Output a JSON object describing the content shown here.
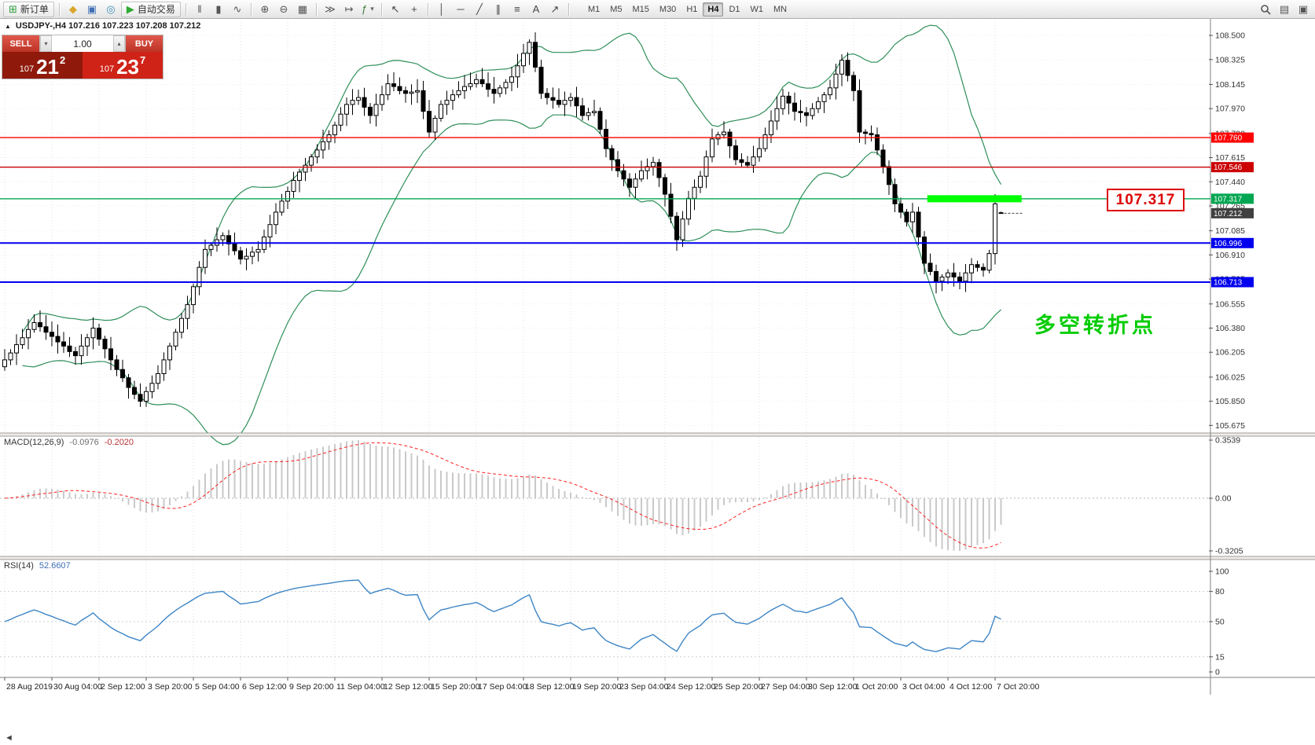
{
  "toolbar": {
    "buttons_left": [
      {
        "name": "new-order-button",
        "glyph": "⊞",
        "glyph_color": "#2e9e3a",
        "label": "新订单",
        "boxed": true
      },
      {
        "sep": true
      },
      {
        "name": "alerts-icon-button",
        "glyph": "◆",
        "glyph_color": "#d9a62b"
      },
      {
        "name": "market-watch-icon-button",
        "glyph": "▣",
        "glyph_color": "#3f6fb5"
      },
      {
        "name": "data-window-icon-button",
        "glyph": "◎",
        "glyph_color": "#3f8fb5"
      },
      {
        "name": "autotrading-button",
        "glyph": "▶",
        "glyph_color": "#2faa2f",
        "label": "自动交易",
        "boxed": true
      },
      {
        "sep": true
      },
      {
        "name": "bar-chart-icon-button",
        "glyph": "‖",
        "glyph_color": "#555555"
      },
      {
        "name": "candlestick-chart-icon-button",
        "glyph": "▮",
        "glyph_color": "#555555"
      },
      {
        "name": "line-chart-icon-button",
        "glyph": "∿",
        "glyph_color": "#555555"
      },
      {
        "sep": true
      },
      {
        "name": "zoom-in-icon-button",
        "glyph": "⊕",
        "glyph_color": "#555555"
      },
      {
        "name": "zoom-out-icon-button",
        "glyph": "⊖",
        "glyph_color": "#555555"
      },
      {
        "name": "tile-windows-icon-button",
        "glyph": "▦",
        "glyph_color": "#555555"
      },
      {
        "sep": true
      },
      {
        "name": "auto-scroll-icon-button",
        "glyph": "≫",
        "glyph_color": "#555555"
      },
      {
        "name": "chart-shift-icon-button",
        "glyph": "↦",
        "glyph_color": "#555555"
      },
      {
        "name": "indicators-icon-button",
        "glyph": "ƒ",
        "glyph_color": "#3a7d3a",
        "caret": true
      },
      {
        "sep": true
      },
      {
        "name": "cursor-icon-button",
        "glyph": "↖",
        "glyph_color": "#444444"
      },
      {
        "name": "crosshair-icon-button",
        "glyph": "+",
        "glyph_color": "#444444"
      },
      {
        "sep": true
      },
      {
        "name": "vertical-line-icon-button",
        "glyph": "│",
        "glyph_color": "#444444"
      },
      {
        "name": "horizontal-line-icon-button",
        "glyph": "─",
        "glyph_color": "#444444"
      },
      {
        "name": "trendline-icon-button",
        "glyph": "╱",
        "glyph_color": "#444444"
      },
      {
        "name": "channel-icon-button",
        "glyph": "∥",
        "glyph_color": "#444444"
      },
      {
        "name": "fibonacci-icon-button",
        "glyph": "≡",
        "glyph_color": "#444444"
      },
      {
        "name": "text-icon-button",
        "glyph": "A",
        "glyph_color": "#444444"
      },
      {
        "name": "arrow-icon-button",
        "glyph": "↗",
        "glyph_color": "#444444"
      },
      {
        "sep": true
      }
    ],
    "timeframes": [
      "M1",
      "M5",
      "M15",
      "M30",
      "H1",
      "H4",
      "D1",
      "W1",
      "MN"
    ],
    "active_timeframe": "H4",
    "buttons_right": [
      {
        "name": "search-icon-button",
        "svg": "magnifier"
      },
      {
        "name": "new-window-icon-button",
        "glyph": "▤",
        "glyph_color": "#555555"
      },
      {
        "name": "layout-icon-button",
        "glyph": "▣",
        "glyph_color": "#555555"
      }
    ]
  },
  "symbol_bar": {
    "collapse_icon": "▲",
    "text": "USDJPY-,H4  107.216 107.223 107.208 107.212"
  },
  "trade_panel": {
    "sell_label": "SELL",
    "buy_label": "BUY",
    "volume": "1.00",
    "sell_price": {
      "prefix": "107",
      "big": "21",
      "sup": "2"
    },
    "buy_price": {
      "prefix": "107",
      "big": "23",
      "sup": "7"
    }
  },
  "annotations": {
    "price_callout": "107.317",
    "turning_point": "多空转折点"
  },
  "chart_data": [
    {
      "type": "candlestick",
      "symbol": "USDJPY-",
      "timeframe": "H4",
      "bars_per_label": 8,
      "x_labels": [
        "28 Aug 2019",
        "30 Aug 04:00",
        "2 Sep 12:00",
        "3 Sep 20:00",
        "5 Sep 04:00",
        "6 Sep 12:00",
        "9 Sep 20:00",
        "11 Sep 04:00",
        "12 Sep 12:00",
        "15 Sep 20:00",
        "17 Sep 04:00",
        "18 Sep 12:00",
        "19 Sep 20:00",
        "23 Sep 04:00",
        "24 Sep 12:00",
        "25 Sep 20:00",
        "27 Sep 04:00",
        "30 Sep 12:00",
        "1 Oct 20:00",
        "3 Oct 04:00",
        "4 Oct 12:00",
        "7 Oct 20:00"
      ],
      "y_axis_ticks": [
        "108.500",
        "108.325",
        "108.145",
        "107.970",
        "107.790",
        "107.615",
        "107.440",
        "107.265",
        "107.085",
        "106.910",
        "106.735",
        "106.555",
        "106.380",
        "106.205",
        "106.025",
        "105.850",
        "105.675"
      ],
      "y_range": [
        105.62,
        108.62
      ],
      "closes": [
        106.15,
        106.2,
        106.26,
        106.31,
        106.37,
        106.42,
        106.39,
        106.35,
        106.32,
        106.28,
        106.25,
        106.21,
        106.18,
        106.25,
        106.31,
        106.38,
        106.3,
        106.23,
        106.15,
        106.08,
        106.02,
        105.95,
        105.9,
        105.85,
        105.92,
        105.98,
        106.05,
        106.15,
        106.25,
        106.35,
        106.45,
        106.55,
        106.68,
        106.82,
        106.95,
        106.98,
        107.02,
        107.05,
        106.99,
        106.94,
        106.88,
        106.9,
        106.93,
        106.95,
        107.04,
        107.13,
        107.22,
        107.3,
        107.37,
        107.45,
        107.51,
        107.56,
        107.62,
        107.67,
        107.73,
        107.78,
        107.85,
        107.93,
        108.0,
        108.03,
        108.05,
        107.98,
        107.92,
        108.0,
        108.07,
        108.15,
        108.13,
        108.1,
        108.08,
        108.09,
        108.1,
        107.95,
        107.8,
        107.9,
        108.0,
        108.03,
        108.07,
        108.1,
        108.13,
        108.15,
        108.18,
        108.15,
        108.11,
        108.08,
        108.12,
        108.16,
        108.2,
        108.28,
        108.37,
        108.45,
        108.27,
        108.08,
        108.05,
        108.03,
        108.0,
        108.03,
        108.05,
        107.99,
        107.92,
        107.94,
        107.95,
        107.82,
        107.68,
        107.6,
        107.52,
        107.46,
        107.4,
        107.46,
        107.52,
        107.55,
        107.58,
        107.47,
        107.35,
        107.19,
        107.02,
        107.17,
        107.32,
        107.4,
        107.48,
        107.62,
        107.75,
        107.78,
        107.8,
        107.7,
        107.6,
        107.58,
        107.56,
        107.62,
        107.68,
        107.78,
        107.88,
        107.97,
        108.06,
        108.01,
        107.95,
        107.94,
        107.92,
        107.97,
        108.02,
        108.07,
        108.12,
        108.22,
        108.32,
        108.21,
        108.1,
        107.8,
        107.79,
        107.78,
        107.67,
        107.55,
        107.42,
        107.28,
        107.22,
        107.15,
        107.22,
        107.04,
        106.85,
        106.79,
        106.72,
        106.75,
        106.78,
        106.75,
        106.72,
        106.78,
        106.84,
        106.82,
        106.8,
        106.92,
        107.28,
        107.212
      ],
      "last_bar_ohlc": [
        107.216,
        107.223,
        107.208,
        107.212
      ],
      "bollinger": {
        "period": 20,
        "deviation": 2,
        "color": "#2f8f5a"
      },
      "hlines": [
        {
          "price": 107.76,
          "tag": "107.760",
          "color": "#ff0000",
          "width": 1.4
        },
        {
          "price": 107.546,
          "tag": "107.546",
          "color": "#cc0000",
          "width": 1.4
        },
        {
          "price": 107.317,
          "tag": "107.317",
          "color": "#00a651",
          "width": 1.4,
          "highlight": {
            "from_bar": 156.5,
            "to_bar": 172.5,
            "thickness": 9,
            "color": "#00ff00"
          }
        },
        {
          "price": 106.996,
          "tag": "106.996",
          "color": "#0000ee",
          "width": 2
        },
        {
          "price": 106.713,
          "tag": "106.713",
          "color": "#0000ee",
          "width": 2
        }
      ],
      "current_price_tag": {
        "text": "107.212",
        "color": "#404040"
      },
      "candle_up_color": "#ffffff",
      "candle_down_color": "#000000"
    },
    {
      "type": "macd",
      "label_name": "MACD(12,26,9)",
      "label_values": [
        "-0.0976",
        "-0.2020"
      ],
      "params": [
        12,
        26,
        9
      ],
      "y_axis_ticks": [
        "0.3539",
        "0.00",
        "-0.3205"
      ],
      "y_max": 0.3539,
      "y_min": -0.3205,
      "histogram_color": "#c9c9c9",
      "signal_color": "#ff2020"
    },
    {
      "type": "rsi",
      "label_name": "RSI(14)",
      "label_value": "52.6607",
      "period": 14,
      "levels": [
        80,
        50,
        15
      ],
      "y_axis_ticks": [
        "100",
        "80",
        "50",
        "15",
        "0"
      ],
      "line_color": "#3d85c6"
    }
  ]
}
